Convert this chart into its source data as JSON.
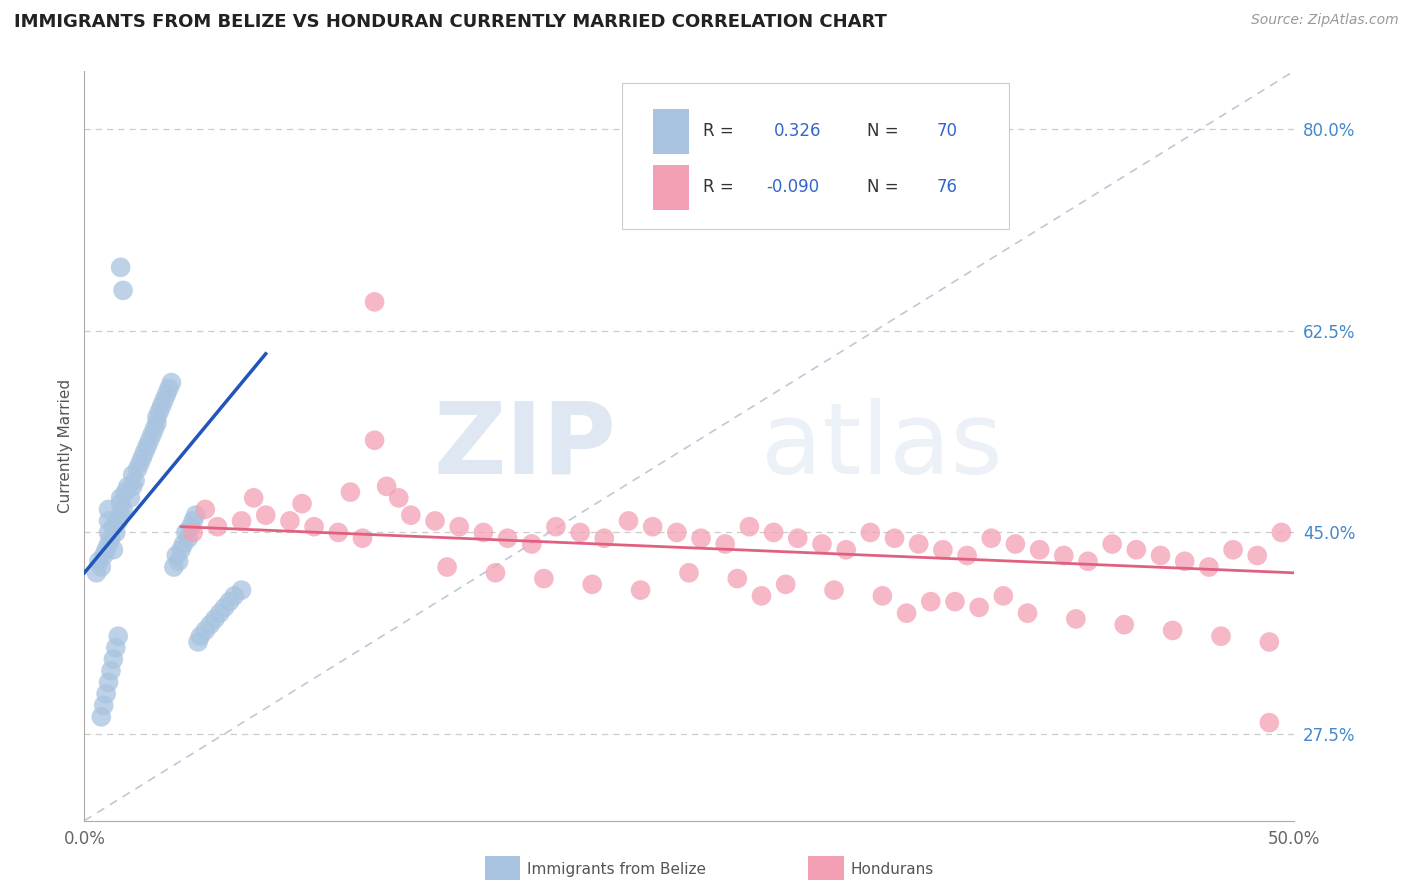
{
  "title": "IMMIGRANTS FROM BELIZE VS HONDURAN CURRENTLY MARRIED CORRELATION CHART",
  "source_text": "Source: ZipAtlas.com",
  "ylabel": "Currently Married",
  "xlim": [
    0.0,
    0.5
  ],
  "ylim": [
    0.2,
    0.85
  ],
  "yticks_right": [
    0.275,
    0.45,
    0.625,
    0.8
  ],
  "ytick_labels_right": [
    "27.5%",
    "45.0%",
    "62.5%",
    "80.0%"
  ],
  "belize_color": "#a8c4e0",
  "honduran_color": "#f4a0b4",
  "belize_line_color": "#2255bb",
  "honduran_line_color": "#e06080",
  "ref_line_color": "#c0c8d8",
  "watermark_zip": "ZIP",
  "watermark_atlas": "atlas",
  "title_fontsize": 13,
  "belize_x": [
    0.005,
    0.006,
    0.007,
    0.008,
    0.009,
    0.01,
    0.01,
    0.01,
    0.01,
    0.011,
    0.012,
    0.012,
    0.013,
    0.014,
    0.015,
    0.015,
    0.015,
    0.016,
    0.017,
    0.018,
    0.019,
    0.02,
    0.02,
    0.021,
    0.022,
    0.023,
    0.024,
    0.025,
    0.026,
    0.027,
    0.028,
    0.029,
    0.03,
    0.03,
    0.031,
    0.032,
    0.033,
    0.034,
    0.035,
    0.036,
    0.037,
    0.038,
    0.039,
    0.04,
    0.041,
    0.042,
    0.043,
    0.044,
    0.045,
    0.046,
    0.047,
    0.048,
    0.05,
    0.052,
    0.054,
    0.056,
    0.058,
    0.06,
    0.062,
    0.065,
    0.007,
    0.008,
    0.009,
    0.01,
    0.011,
    0.012,
    0.013,
    0.014,
    0.015,
    0.016
  ],
  "belize_y": [
    0.415,
    0.425,
    0.42,
    0.43,
    0.435,
    0.44,
    0.45,
    0.46,
    0.47,
    0.445,
    0.435,
    0.455,
    0.45,
    0.46,
    0.465,
    0.48,
    0.475,
    0.47,
    0.485,
    0.49,
    0.48,
    0.49,
    0.5,
    0.495,
    0.505,
    0.51,
    0.515,
    0.52,
    0.525,
    0.53,
    0.535,
    0.54,
    0.545,
    0.55,
    0.555,
    0.56,
    0.565,
    0.57,
    0.575,
    0.58,
    0.42,
    0.43,
    0.425,
    0.435,
    0.44,
    0.45,
    0.445,
    0.455,
    0.46,
    0.465,
    0.355,
    0.36,
    0.365,
    0.37,
    0.375,
    0.38,
    0.385,
    0.39,
    0.395,
    0.4,
    0.29,
    0.3,
    0.31,
    0.32,
    0.33,
    0.34,
    0.35,
    0.36,
    0.68,
    0.66
  ],
  "honduran_x": [
    0.045,
    0.055,
    0.065,
    0.075,
    0.085,
    0.095,
    0.105,
    0.115,
    0.125,
    0.135,
    0.145,
    0.155,
    0.165,
    0.175,
    0.185,
    0.195,
    0.205,
    0.215,
    0.225,
    0.235,
    0.245,
    0.255,
    0.265,
    0.275,
    0.285,
    0.295,
    0.305,
    0.315,
    0.325,
    0.335,
    0.345,
    0.355,
    0.365,
    0.375,
    0.385,
    0.395,
    0.405,
    0.415,
    0.425,
    0.435,
    0.445,
    0.455,
    0.465,
    0.475,
    0.485,
    0.495,
    0.05,
    0.07,
    0.09,
    0.11,
    0.13,
    0.15,
    0.17,
    0.19,
    0.21,
    0.23,
    0.25,
    0.27,
    0.29,
    0.31,
    0.33,
    0.35,
    0.37,
    0.39,
    0.41,
    0.43,
    0.45,
    0.47,
    0.49,
    0.12,
    0.28,
    0.34,
    0.36,
    0.38,
    0.49,
    0.12
  ],
  "honduran_y": [
    0.45,
    0.455,
    0.46,
    0.465,
    0.46,
    0.455,
    0.45,
    0.445,
    0.49,
    0.465,
    0.46,
    0.455,
    0.45,
    0.445,
    0.44,
    0.455,
    0.45,
    0.445,
    0.46,
    0.455,
    0.45,
    0.445,
    0.44,
    0.455,
    0.45,
    0.445,
    0.44,
    0.435,
    0.45,
    0.445,
    0.44,
    0.435,
    0.43,
    0.445,
    0.44,
    0.435,
    0.43,
    0.425,
    0.44,
    0.435,
    0.43,
    0.425,
    0.42,
    0.435,
    0.43,
    0.45,
    0.47,
    0.48,
    0.475,
    0.485,
    0.48,
    0.42,
    0.415,
    0.41,
    0.405,
    0.4,
    0.415,
    0.41,
    0.405,
    0.4,
    0.395,
    0.39,
    0.385,
    0.38,
    0.375,
    0.37,
    0.365,
    0.36,
    0.355,
    0.65,
    0.395,
    0.38,
    0.39,
    0.395,
    0.285,
    0.53
  ],
  "belize_trend_x": [
    0.0,
    0.075
  ],
  "belize_trend_y": [
    0.415,
    0.605
  ],
  "honduran_trend_x": [
    0.04,
    0.5
  ],
  "honduran_trend_y": [
    0.455,
    0.415
  ],
  "ref_line_x": [
    0.0,
    0.5
  ],
  "ref_line_y": [
    0.2,
    0.85
  ]
}
